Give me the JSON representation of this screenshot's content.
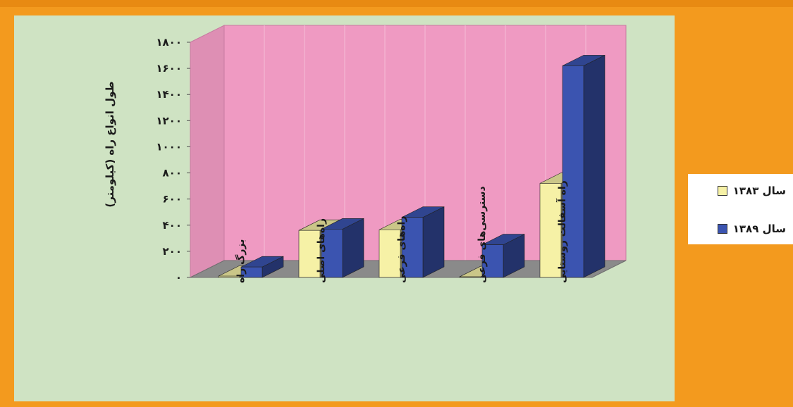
{
  "chart_data": {
    "type": "bar",
    "title": "",
    "xlabel": "",
    "ylabel": "طول انواع راه (کیلومتر)",
    "ylim": [
      0,
      1800
    ],
    "yticks": [
      0,
      200,
      400,
      600,
      800,
      1000,
      1200,
      1400,
      1600,
      1800
    ],
    "ytick_labels": [
      "۰",
      "۲۰۰",
      "۴۰۰",
      "۶۰۰",
      "۸۰۰",
      "۱۰۰۰",
      "۱۲۰۰",
      "۱۴۰۰",
      "۱۶۰۰",
      "۱۸۰۰"
    ],
    "categories": [
      "بزرگ راه",
      "راه‌های اصلی",
      "راه‌های فرعی",
      "دسترسی‌های فرعی",
      "راه آسفالت روستایی"
    ],
    "series": [
      {
        "name": "سال ۱۳۸۳",
        "values": [
          10,
          360,
          365,
          5,
          720
        ]
      },
      {
        "name": "سال ۱۳۸۹",
        "values": [
          80,
          370,
          460,
          250,
          1620
        ]
      }
    ],
    "legend_position": "right",
    "colors": {
      "series_1383": "#f6f1a6",
      "series_1389": "#3b54b0",
      "back_wall": "#ef9ac2",
      "floor": "#8a8a8a"
    }
  }
}
